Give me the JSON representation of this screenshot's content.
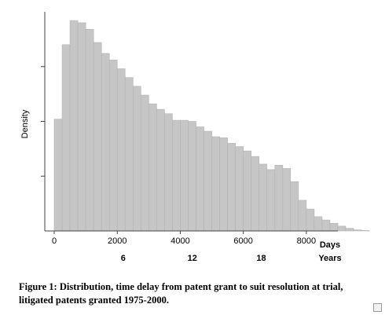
{
  "chart_data": {
    "type": "bar",
    "title": "",
    "xlabel": "Days",
    "ylabel": "Density",
    "secondary_xlabel": "Years",
    "xlim": [
      -300,
      9000
    ],
    "x_ticks": [
      0,
      2000,
      4000,
      6000,
      8000
    ],
    "secondary_ticks": [
      {
        "label": "6",
        "days": 2190
      },
      {
        "label": "12",
        "days": 4380
      },
      {
        "label": "18",
        "days": 6570
      }
    ],
    "bin_width": 250,
    "bin_start": 0,
    "ylim": [
      0,
      1
    ],
    "grid": false,
    "values": [
      0.51,
      0.85,
      0.96,
      0.95,
      0.92,
      0.86,
      0.81,
      0.78,
      0.74,
      0.7,
      0.66,
      0.62,
      0.58,
      0.555,
      0.535,
      0.505,
      0.505,
      0.5,
      0.475,
      0.455,
      0.43,
      0.425,
      0.4,
      0.385,
      0.365,
      0.34,
      0.305,
      0.28,
      0.3,
      0.285,
      0.225,
      0.14,
      0.1,
      0.065,
      0.05,
      0.035,
      0.022,
      0.012,
      0.005,
      0.002
    ]
  },
  "caption": {
    "line1": "Figure 1:  Distribution, time delay from patent grant to suit resolution at trial,",
    "line2": "litigated patents granted 1975-2000."
  },
  "colors": {
    "bar_fill": "#c6c6c6",
    "bar_edge": "#b3b3b3",
    "axis": "#444444"
  },
  "icons": {
    "corner": "resize-icon"
  }
}
